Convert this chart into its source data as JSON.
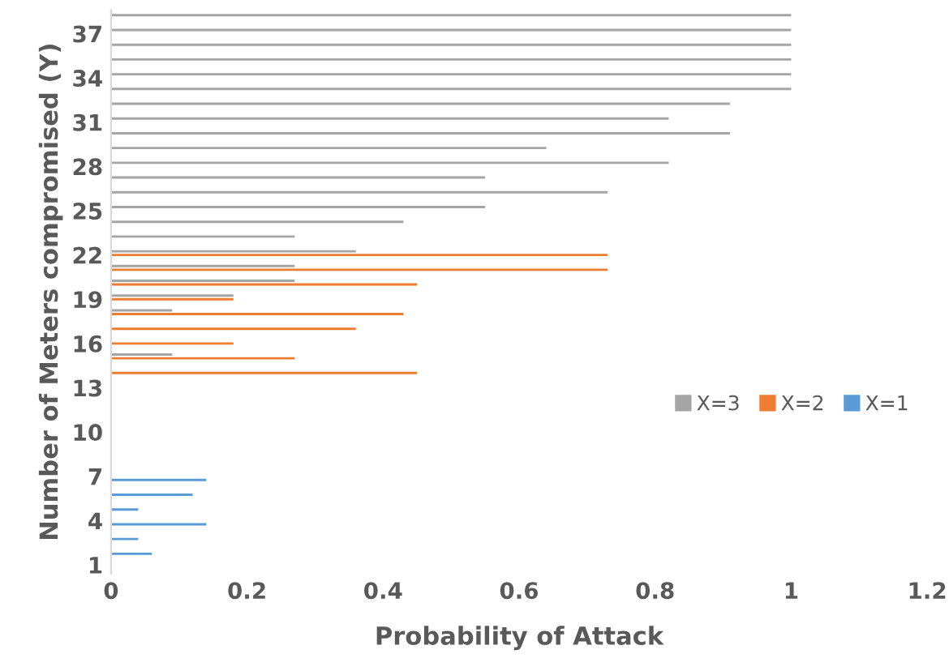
{
  "chart_data": {
    "type": "bar",
    "orientation": "horizontal",
    "xlabel": "Probability of Attack",
    "ylabel": "Number of Meters compromised (Y)",
    "categories": [
      null,
      "37",
      null,
      null,
      "34",
      null,
      null,
      "31",
      null,
      null,
      "28",
      null,
      null,
      "25",
      null,
      null,
      "22",
      null,
      null,
      "19",
      null,
      null,
      "16",
      null,
      null,
      "13",
      null,
      null,
      "10",
      null,
      null,
      "7",
      null,
      null,
      "4",
      null,
      null,
      "1"
    ],
    "series": [
      {
        "name": "X=3",
        "color": "#a5a5a5",
        "values": [
          1,
          1,
          1,
          1,
          1,
          1,
          0.91,
          0.82,
          0.91,
          0.64,
          0.82,
          0.55,
          0.73,
          0.55,
          0.43,
          0.27,
          0.36,
          0.27,
          0.27,
          0.18,
          0.09,
          null,
          null,
          0.09,
          null,
          null,
          null,
          null,
          null,
          null,
          null,
          null,
          null,
          null,
          null,
          null,
          null,
          null
        ]
      },
      {
        "name": "X=2",
        "color": "#ed7d31",
        "values": [
          null,
          null,
          null,
          null,
          null,
          null,
          null,
          null,
          null,
          null,
          null,
          null,
          null,
          null,
          null,
          null,
          0.73,
          0.73,
          0.45,
          0.18,
          0.43,
          0.36,
          0.18,
          0.27,
          0.45,
          null,
          null,
          null,
          null,
          null,
          null,
          null,
          null,
          null,
          null,
          null,
          null,
          null
        ]
      },
      {
        "name": "X=1",
        "color": "#5b9bd5",
        "values": [
          null,
          null,
          null,
          null,
          null,
          null,
          null,
          null,
          null,
          null,
          null,
          null,
          null,
          null,
          null,
          null,
          null,
          null,
          null,
          null,
          null,
          null,
          null,
          null,
          null,
          null,
          null,
          null,
          null,
          null,
          null,
          0.14,
          0.12,
          0.04,
          0.14,
          0.04,
          0.06,
          null
        ]
      }
    ],
    "xlim": [
      0,
      1.2
    ],
    "xticks": [
      0,
      0.2,
      0.4,
      0.6,
      0.8,
      1,
      1.2
    ],
    "grid": false,
    "legend": "right"
  }
}
